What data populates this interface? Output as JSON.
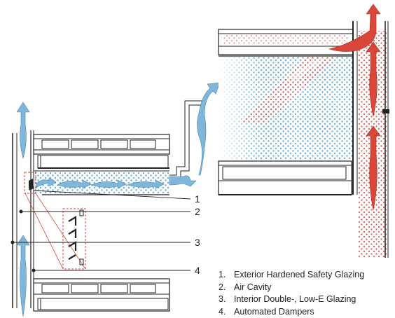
{
  "callouts": [
    "1",
    "2",
    "3",
    "4"
  ],
  "legend": [
    {
      "num": "1.",
      "text": "Exterior Hardened Safety Glazing"
    },
    {
      "num": "2.",
      "text": "Air Cavity"
    },
    {
      "num": "3.",
      "text": "Interior Double-, Low-E Glazing"
    },
    {
      "num": "4.",
      "text": "Automated Dampers"
    }
  ],
  "colors": {
    "cool_air": "#7fb6d9",
    "warm_air": "#d9463a",
    "dots_blue": "#6aaed6",
    "dots_red": "#e05a4e",
    "line": "#222222",
    "callout_box": "#d9463a"
  }
}
